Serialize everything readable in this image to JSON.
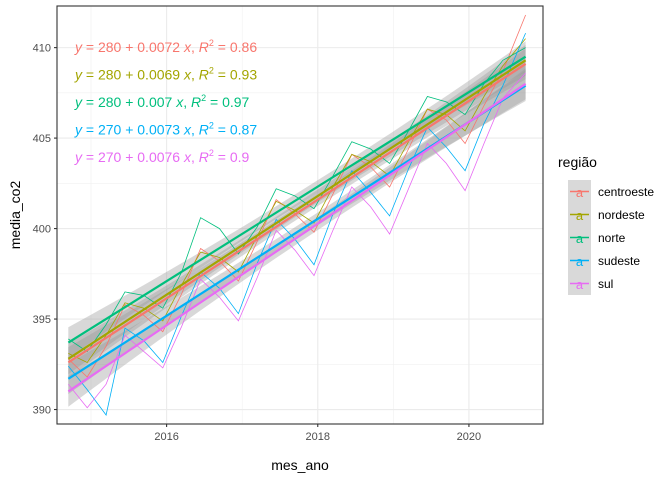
{
  "chart_data": {
    "type": "line",
    "xlabel": "mes_ano",
    "ylabel": "media_co2",
    "xlim": [
      2014.55,
      2020.98
    ],
    "ylim": [
      389.2,
      412.3
    ],
    "x_ticks": [
      2016,
      2018,
      2020
    ],
    "y_ticks": [
      390,
      395,
      400,
      405,
      410
    ],
    "grid": true,
    "legend": {
      "title": "região",
      "placement": "right",
      "entries": [
        "centroeste",
        "nordeste",
        "norte",
        "sudeste",
        "sul"
      ]
    },
    "series": [
      {
        "name": "centroeste",
        "color": "#F8766D",
        "equation": {
          "intercept": "280",
          "slope": "0.0072",
          "r2": "0.86"
        },
        "fit": {
          "x": [
            2014.7,
            2020.75
          ],
          "y": [
            392.6,
            409.1
          ]
        },
        "x": [
          2014.7,
          2014.95,
          2015.2,
          2015.45,
          2015.7,
          2015.95,
          2016.2,
          2016.45,
          2016.7,
          2016.95,
          2017.2,
          2017.45,
          2017.7,
          2017.95,
          2018.2,
          2018.45,
          2018.7,
          2018.95,
          2019.2,
          2019.45,
          2019.7,
          2019.95,
          2020.2,
          2020.45,
          2020.75
        ],
        "y": [
          392.8,
          391.8,
          393.5,
          395.8,
          395.2,
          394.3,
          396.4,
          398.9,
          398.2,
          397.1,
          399.3,
          401.6,
          400.8,
          399.8,
          401.9,
          404.1,
          403.4,
          402.3,
          404.4,
          406.6,
          406.0,
          404.7,
          406.8,
          408.7,
          411.8
        ]
      },
      {
        "name": "nordeste",
        "color": "#A3A500",
        "equation": {
          "intercept": "280",
          "slope": "0.0069",
          "r2": "0.93"
        },
        "fit": {
          "x": [
            2014.7,
            2020.75
          ],
          "y": [
            392.8,
            409.3
          ]
        },
        "x": [
          2014.7,
          2014.95,
          2015.2,
          2015.45,
          2015.7,
          2015.95,
          2016.2,
          2016.45,
          2016.7,
          2016.95,
          2017.2,
          2017.45,
          2017.7,
          2017.95,
          2018.2,
          2018.45,
          2018.7,
          2018.95,
          2019.2,
          2019.45,
          2019.7,
          2019.95,
          2020.2,
          2020.45,
          2020.75
        ],
        "y": [
          393.1,
          392.6,
          394.1,
          395.9,
          395.6,
          394.9,
          396.9,
          398.7,
          398.4,
          397.6,
          399.6,
          401.5,
          401.0,
          400.3,
          402.3,
          404.1,
          403.7,
          402.9,
          404.8,
          406.6,
          406.3,
          405.4,
          407.3,
          409.0,
          410.5
        ]
      },
      {
        "name": "norte",
        "color": "#00BF7D",
        "equation": {
          "intercept": "280",
          "slope": "0.007",
          "r2": "0.97"
        },
        "fit": {
          "x": [
            2014.7,
            2020.75
          ],
          "y": [
            393.7,
            409.5
          ]
        },
        "x": [
          2014.7,
          2014.95,
          2015.2,
          2015.45,
          2015.7,
          2015.95,
          2016.2,
          2016.45,
          2016.7,
          2016.95,
          2017.2,
          2017.45,
          2017.7,
          2017.95,
          2018.2,
          2018.45,
          2018.7,
          2018.95,
          2019.2,
          2019.45,
          2019.7,
          2019.95,
          2020.2,
          2020.45,
          2020.75
        ],
        "y": [
          393.9,
          393.2,
          394.7,
          396.5,
          396.3,
          395.6,
          397.6,
          400.6,
          400.0,
          398.6,
          400.1,
          402.2,
          401.8,
          401.1,
          402.9,
          404.8,
          404.4,
          403.6,
          405.4,
          407.3,
          407.0,
          406.3,
          408.0,
          409.3,
          410.0
        ]
      },
      {
        "name": "sudeste",
        "color": "#00B0F6",
        "equation": {
          "intercept": "270",
          "slope": "0.0073",
          "r2": "0.87"
        },
        "fit": {
          "x": [
            2014.7,
            2020.75
          ],
          "y": [
            391.7,
            407.9
          ]
        },
        "x": [
          2014.7,
          2014.95,
          2015.2,
          2015.45,
          2015.7,
          2015.95,
          2016.2,
          2016.45,
          2016.7,
          2016.95,
          2017.2,
          2017.45,
          2017.7,
          2017.95,
          2018.2,
          2018.45,
          2018.7,
          2018.95,
          2019.2,
          2019.45,
          2019.7,
          2019.95,
          2020.2,
          2020.45,
          2020.75
        ],
        "y": [
          392.4,
          391.1,
          389.7,
          394.5,
          393.8,
          392.6,
          395.2,
          397.6,
          396.7,
          395.3,
          398.1,
          400.5,
          399.4,
          398.0,
          400.8,
          403.2,
          402.0,
          400.7,
          403.3,
          405.6,
          404.5,
          403.2,
          405.8,
          407.9,
          410.8
        ]
      },
      {
        "name": "sul",
        "color": "#E76BF3",
        "equation": {
          "intercept": "270",
          "slope": "0.0076",
          "r2": "0.9"
        },
        "fit": {
          "x": [
            2014.7,
            2020.75
          ],
          "y": [
            391.0,
            408.0
          ]
        },
        "x": [
          2014.7,
          2014.95,
          2015.2,
          2015.45,
          2015.7,
          2015.95,
          2016.2,
          2016.45,
          2016.7,
          2016.95,
          2017.2,
          2017.45,
          2017.7,
          2017.95,
          2018.2,
          2018.45,
          2018.7,
          2018.95,
          2019.2,
          2019.45,
          2019.7,
          2019.95,
          2020.2,
          2020.45,
          2020.75
        ],
        "y": [
          391.4,
          390.1,
          391.4,
          394.1,
          393.2,
          392.3,
          394.6,
          397.2,
          396.2,
          394.9,
          397.3,
          399.9,
          398.8,
          397.4,
          399.9,
          402.3,
          401.2,
          399.7,
          402.2,
          404.7,
          403.6,
          402.1,
          404.7,
          407.2,
          408.6
        ]
      }
    ]
  }
}
